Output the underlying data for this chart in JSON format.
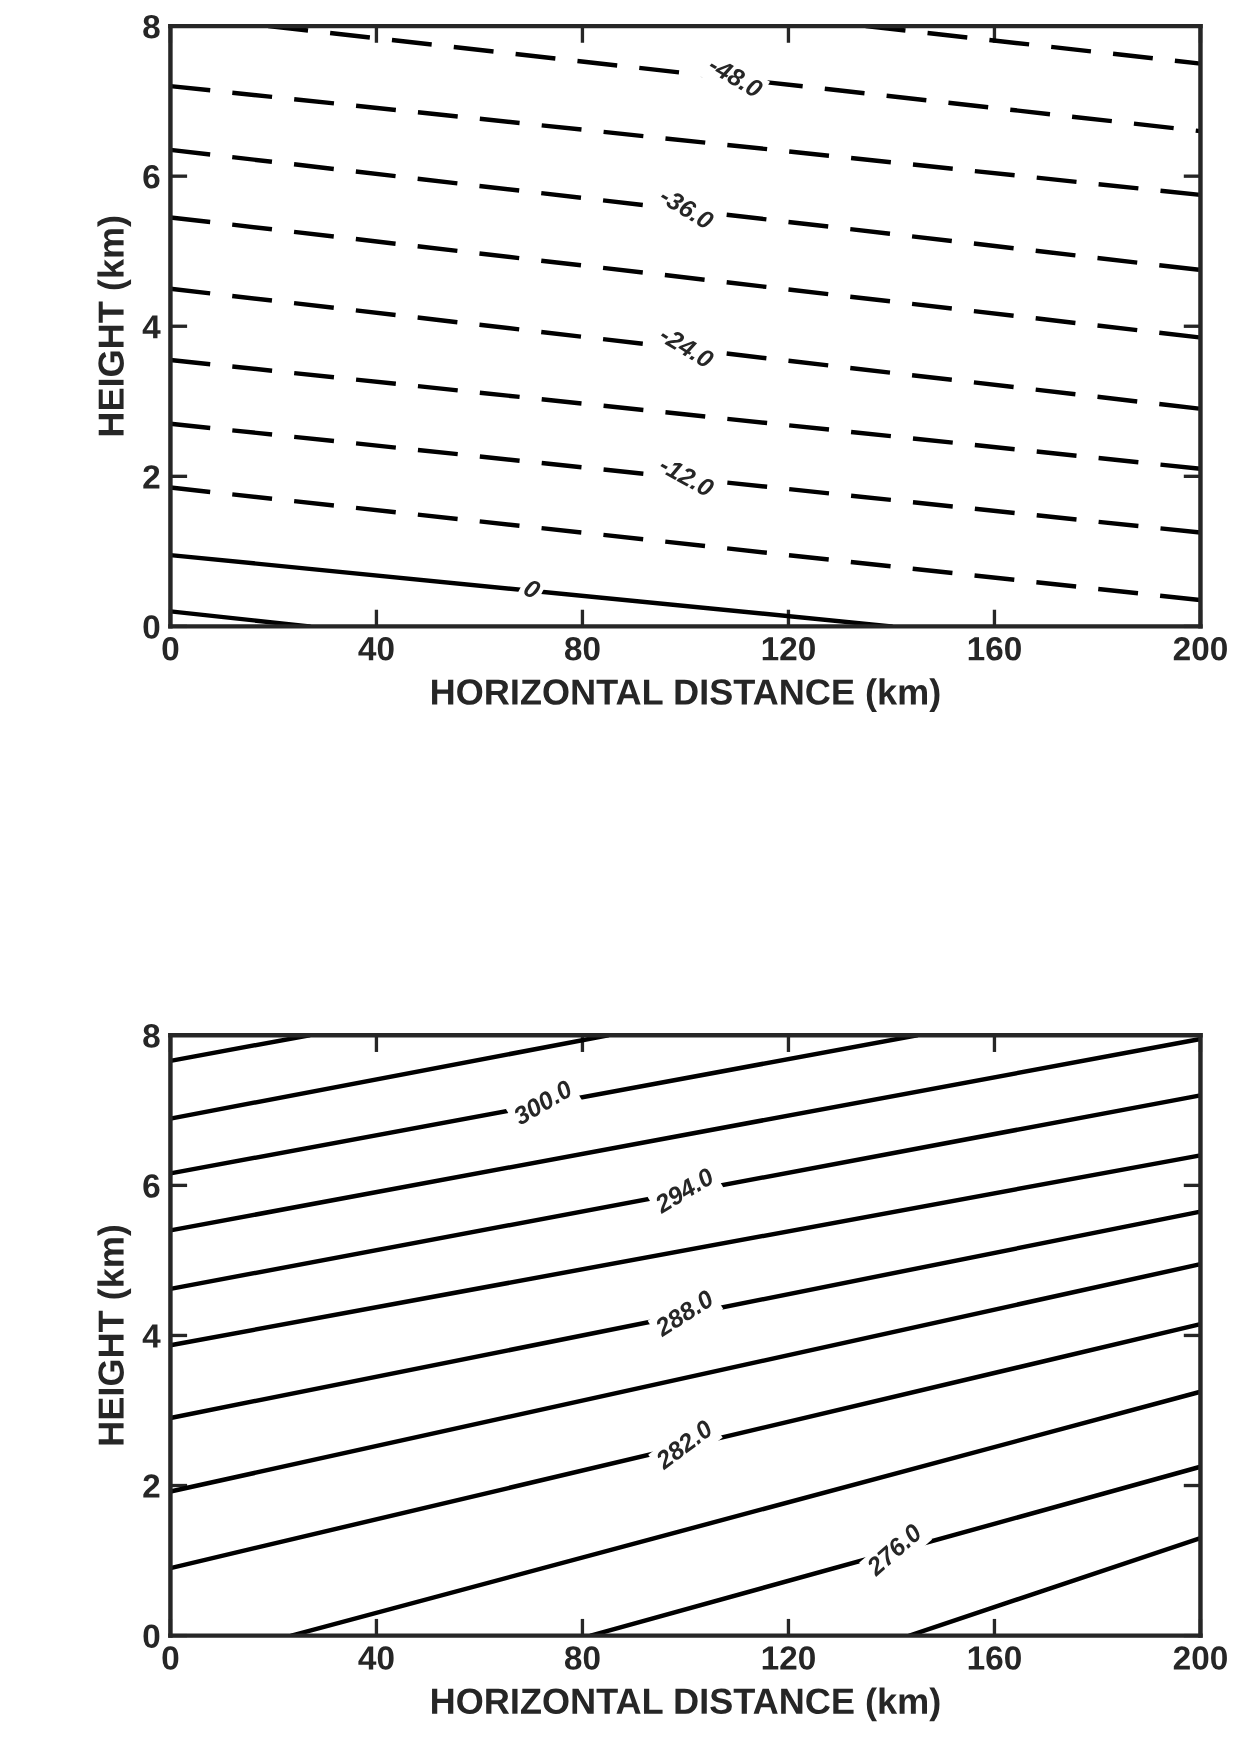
{
  "chart_data": [
    {
      "type": "line",
      "xlabel": "HORIZONTAL DISTANCE (km)",
      "ylabel": "HEIGHT (km)",
      "xlim": [
        0,
        200
      ],
      "ylim": [
        0,
        8
      ],
      "xticks": [
        0,
        40,
        80,
        120,
        160,
        200
      ],
      "yticks": [
        0,
        2,
        4,
        6,
        8
      ],
      "grid": false,
      "legend": false,
      "marker": "none",
      "series": [
        {
          "color": "#000000",
          "line_style": "dashed",
          "x": [
            135,
            200
          ],
          "values": [
            8,
            7.5
          ]
        },
        {
          "name": "-48.0",
          "color": "#000000",
          "line_style": "dashed",
          "x": [
            19,
            200
          ],
          "values": [
            8,
            6.6
          ]
        },
        {
          "color": "#000000",
          "line_style": "dashed",
          "x": [
            0,
            200
          ],
          "values": [
            7.2,
            5.75
          ]
        },
        {
          "name": "-36.0",
          "color": "#000000",
          "line_style": "dashed",
          "x": [
            0,
            200
          ],
          "values": [
            6.35,
            4.75
          ]
        },
        {
          "color": "#000000",
          "line_style": "dashed",
          "x": [
            0,
            200
          ],
          "values": [
            5.45,
            3.85
          ]
        },
        {
          "name": "-24.0",
          "color": "#000000",
          "line_style": "dashed",
          "x": [
            0,
            200
          ],
          "values": [
            4.5,
            2.9
          ]
        },
        {
          "color": "#000000",
          "line_style": "dashed",
          "x": [
            0,
            200
          ],
          "values": [
            3.55,
            2.1
          ]
        },
        {
          "name": "-12.0",
          "color": "#000000",
          "line_style": "dashed",
          "x": [
            0,
            200
          ],
          "values": [
            2.7,
            1.25
          ]
        },
        {
          "color": "#000000",
          "line_style": "dashed",
          "x": [
            0,
            200
          ],
          "values": [
            1.85,
            0.35
          ]
        },
        {
          "name": "0",
          "color": "#000000",
          "line_style": "solid",
          "x": [
            0,
            140
          ],
          "values": [
            0.95,
            0
          ]
        },
        {
          "color": "#000000",
          "line_style": "solid",
          "x": [
            0,
            27
          ],
          "values": [
            0.2,
            0
          ]
        }
      ]
    },
    {
      "type": "line",
      "xlabel": "HORIZONTAL DISTANCE (km)",
      "ylabel": "HEIGHT (km)",
      "xlim": [
        0,
        200
      ],
      "ylim": [
        0,
        8
      ],
      "xticks": [
        0,
        40,
        80,
        120,
        160,
        200
      ],
      "yticks": [
        0,
        2,
        4,
        6,
        8
      ],
      "grid": false,
      "legend": false,
      "marker": "none",
      "series": [
        {
          "color": "#000000",
          "line_style": "solid",
          "x": [
            0,
            27
          ],
          "values": [
            7.66,
            8
          ]
        },
        {
          "color": "#000000",
          "line_style": "solid",
          "x": [
            0,
            85
          ],
          "values": [
            6.89,
            8
          ]
        },
        {
          "name": "300.0",
          "color": "#000000",
          "line_style": "solid",
          "x": [
            0,
            145
          ],
          "values": [
            6.16,
            8
          ]
        },
        {
          "color": "#000000",
          "line_style": "solid",
          "x": [
            0,
            200
          ],
          "values": [
            5.4,
            7.95
          ]
        },
        {
          "name": "294.0",
          "color": "#000000",
          "line_style": "solid",
          "x": [
            0,
            200
          ],
          "values": [
            4.62,
            7.2
          ]
        },
        {
          "color": "#000000",
          "line_style": "solid",
          "x": [
            0,
            200
          ],
          "values": [
            3.87,
            6.4
          ]
        },
        {
          "name": "288.0",
          "color": "#000000",
          "line_style": "solid",
          "x": [
            0,
            200
          ],
          "values": [
            2.9,
            5.65
          ]
        },
        {
          "color": "#000000",
          "line_style": "solid",
          "x": [
            0,
            200
          ],
          "values": [
            1.92,
            4.95
          ]
        },
        {
          "name": "282.0",
          "color": "#000000",
          "line_style": "solid",
          "x": [
            0,
            200
          ],
          "values": [
            0.9,
            4.15
          ]
        },
        {
          "color": "#000000",
          "line_style": "solid",
          "x": [
            23.5,
            200
          ],
          "values": [
            0,
            3.25
          ]
        },
        {
          "name": "276.0",
          "color": "#000000",
          "line_style": "solid",
          "x": [
            81.6,
            200
          ],
          "values": [
            0,
            2.25
          ]
        },
        {
          "color": "#000000",
          "line_style": "solid",
          "x": [
            143.5,
            200
          ],
          "values": [
            0,
            1.3
          ]
        }
      ]
    }
  ]
}
